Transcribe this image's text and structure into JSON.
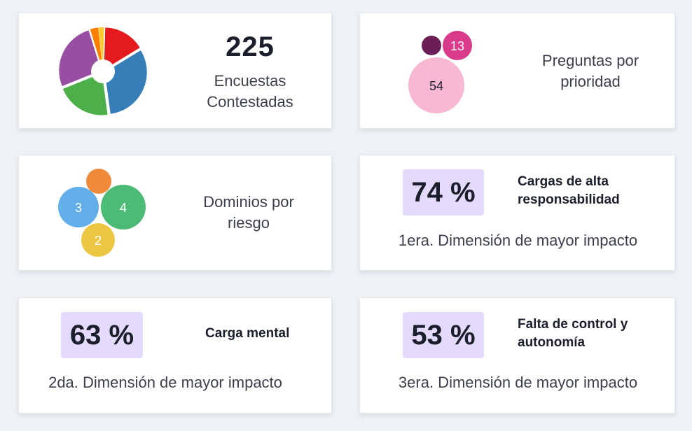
{
  "surveys": {
    "count": "225",
    "label_line1": "Encuestas",
    "label_line2": "Contestadas",
    "pie_slices": [
      {
        "name": "red",
        "value": 15,
        "color": "#e41a1c"
      },
      {
        "name": "blue",
        "value": 30,
        "color": "#377eb8"
      },
      {
        "name": "green",
        "value": 20,
        "color": "#4daf4a"
      },
      {
        "name": "purple",
        "value": 25,
        "color": "#984ea3"
      },
      {
        "name": "orange",
        "value": 3,
        "color": "#ff7f00"
      },
      {
        "name": "yellow",
        "value": 2,
        "color": "#ffcc33"
      }
    ]
  },
  "priority": {
    "label_line1": "Preguntas por",
    "label_line2": "prioridad",
    "bubbles": [
      {
        "name": "bubble-dark",
        "label": "",
        "color": "#6b1e55"
      },
      {
        "name": "bubble-13",
        "label": "13",
        "color": "#d93a8a"
      },
      {
        "name": "bubble-54",
        "label": "54",
        "color": "#f8b8d2"
      }
    ]
  },
  "domains": {
    "label_line1": "Dominios por",
    "label_line2": "riesgo",
    "bubbles": [
      {
        "name": "bubble-orange",
        "label": "",
        "color": "#ef8a3a"
      },
      {
        "name": "bubble-3",
        "label": "3",
        "color": "#62aee8"
      },
      {
        "name": "bubble-4",
        "label": "4",
        "color": "#4cbb75"
      },
      {
        "name": "bubble-2",
        "label": "2",
        "color": "#ecc743"
      }
    ]
  },
  "dimension1": {
    "percent": "74 %",
    "title_line1": "Cargas de alta",
    "title_line2": "responsabilidad",
    "subtitle": "1era. Dimensión de mayor impacto"
  },
  "dimension2": {
    "percent": "63 %",
    "title_line1": "Carga mental",
    "subtitle": "2da. Dimensión de mayor impacto"
  },
  "dimension3": {
    "percent": "53 %",
    "title_line1": "Falta de control y",
    "title_line2": "autonomía",
    "subtitle": "3era. Dimensión de mayor impacto"
  }
}
